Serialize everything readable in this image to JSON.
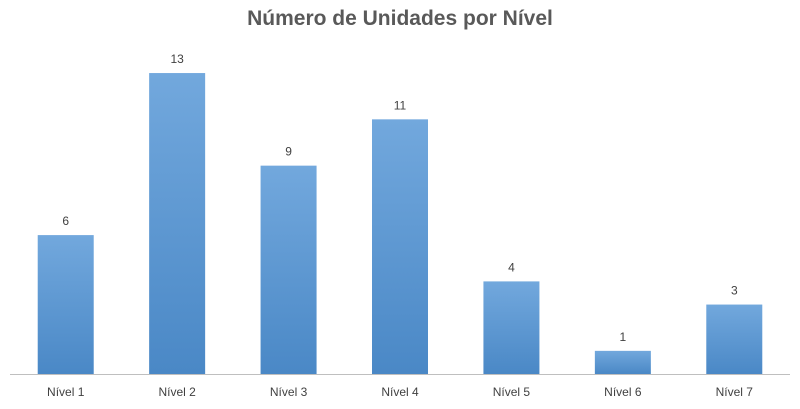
{
  "chart_data": {
    "type": "bar",
    "title": "Número de Unidades por Nível",
    "categories": [
      "Nível 1",
      "Nível 2",
      "Nível 3",
      "Nível 4",
      "Nível 5",
      "Nível 6",
      "Nível 7"
    ],
    "values": [
      6,
      13,
      9,
      11,
      4,
      1,
      3
    ],
    "xlabel": "",
    "ylabel": "",
    "ylim": [
      0,
      14
    ],
    "grid": false,
    "legend": "none",
    "data_labels": true,
    "bar_color": "#5b9bd5",
    "bar_color_light": "#72a8dd",
    "bar_color_dark": "#4a88c6",
    "axis_color": "#bfbfbf"
  }
}
